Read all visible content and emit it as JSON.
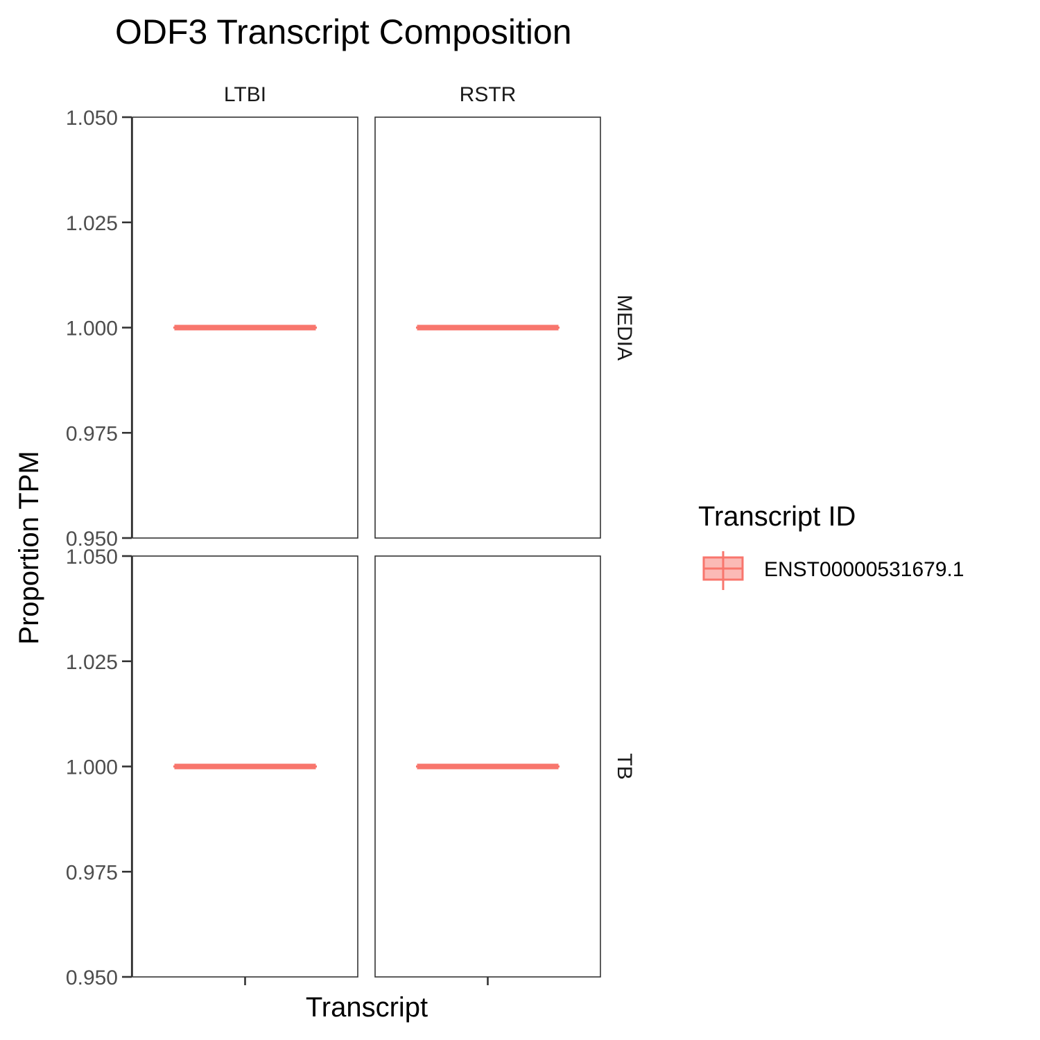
{
  "chart_data": {
    "type": "box",
    "title": "ODF3 Transcript Composition",
    "xlabel": "Transcript",
    "ylabel": "Proportion TPM",
    "ylim": [
      0.95,
      1.05
    ],
    "yticks": [
      "0.950",
      "0.975",
      "1.000",
      "1.025",
      "1.050"
    ],
    "yticks_values": [
      0.95,
      0.975,
      1.0,
      1.025,
      1.05
    ],
    "facet_columns": [
      "LTBI",
      "RSTR"
    ],
    "facet_rows": [
      "MEDIA",
      "TB"
    ],
    "legend": {
      "title": "Transcript ID",
      "entries": [
        "ENST00000531679.1"
      ],
      "placement": "right"
    },
    "grid": false,
    "series": [
      {
        "name": "ENST00000531679.1",
        "color": "#F8766D",
        "fill": "#F8766D",
        "panels": [
          {
            "row": "MEDIA",
            "col": "LTBI",
            "min": 1.0,
            "q1": 1.0,
            "median": 1.0,
            "q3": 1.0,
            "max": 1.0
          },
          {
            "row": "MEDIA",
            "col": "RSTR",
            "min": 1.0,
            "q1": 1.0,
            "median": 1.0,
            "q3": 1.0,
            "max": 1.0
          },
          {
            "row": "TB",
            "col": "LTBI",
            "min": 1.0,
            "q1": 1.0,
            "median": 1.0,
            "q3": 1.0,
            "max": 1.0
          },
          {
            "row": "TB",
            "col": "RSTR",
            "min": 1.0,
            "q1": 1.0,
            "median": 1.0,
            "q3": 1.0,
            "max": 1.0
          }
        ]
      }
    ]
  }
}
